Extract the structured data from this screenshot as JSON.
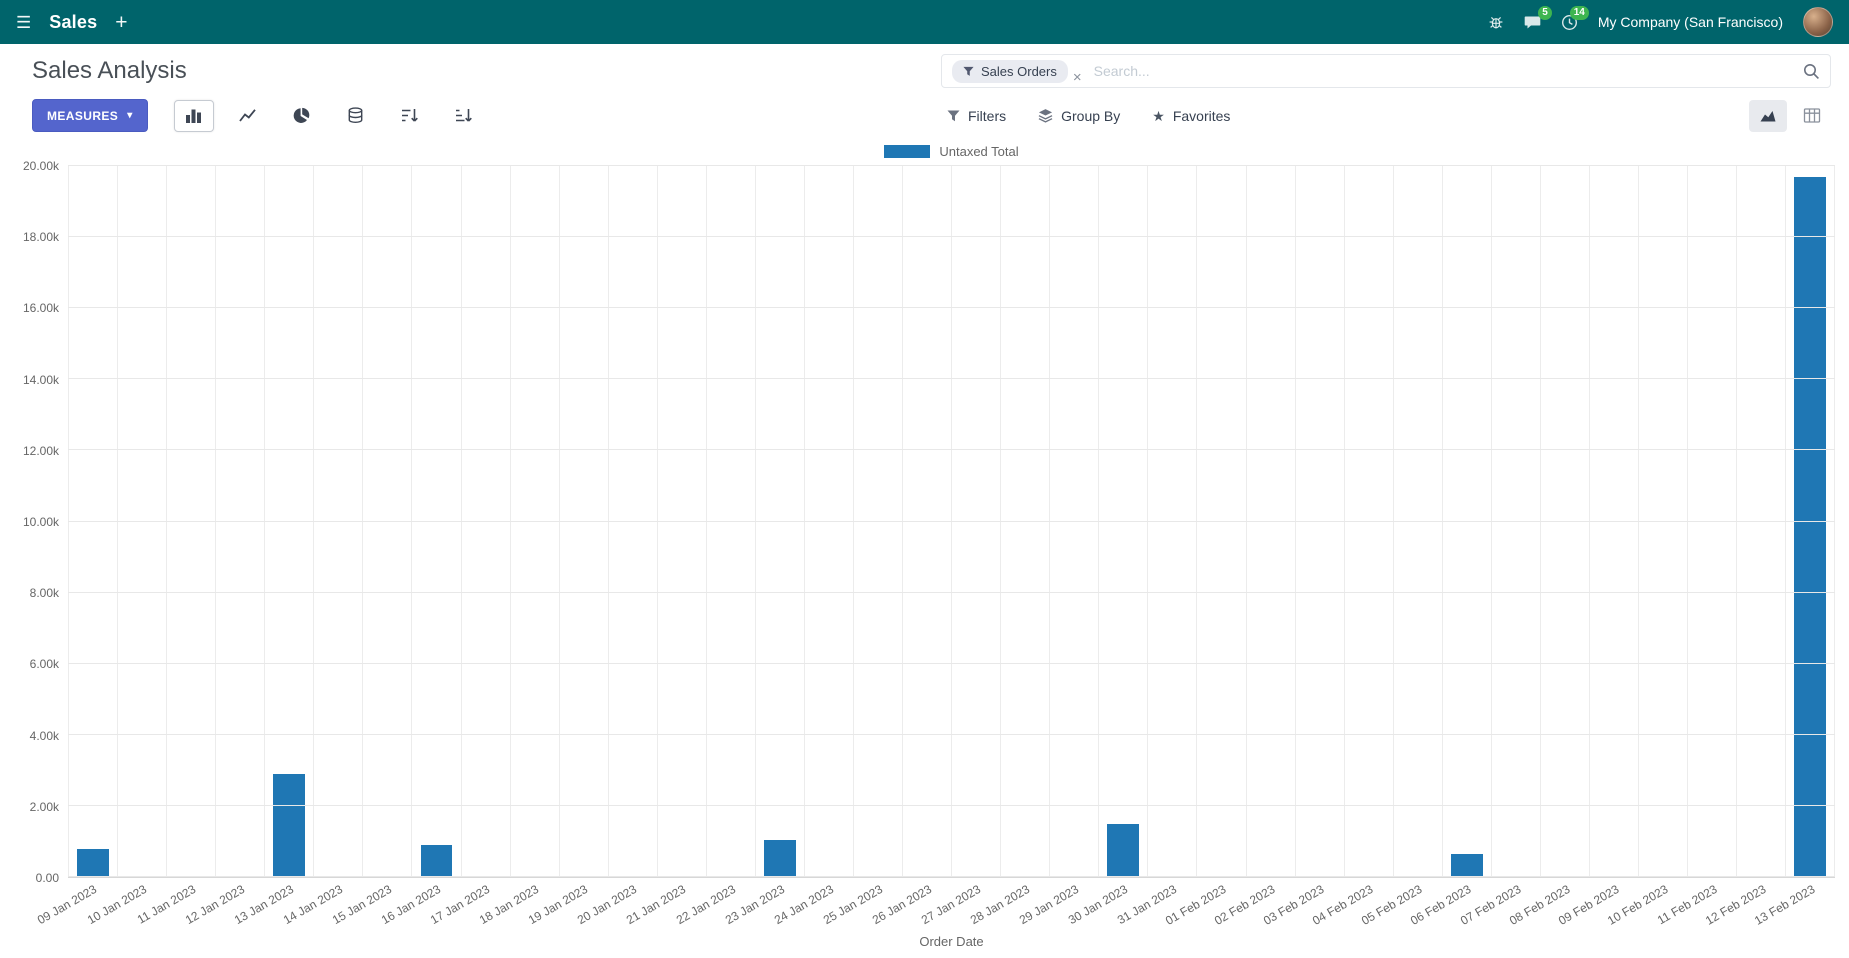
{
  "navbar": {
    "app_name": "Sales",
    "company": "My Company (San Francisco)",
    "messages_badge": "5",
    "activities_badge": "14"
  },
  "control_panel": {
    "title": "Sales Analysis",
    "measures_label": "MEASURES",
    "search": {
      "facet": "Sales Orders",
      "placeholder": "Search..."
    },
    "filters_label": "Filters",
    "group_by_label": "Group By",
    "favorites_label": "Favorites"
  },
  "icons": {
    "menu": "☰",
    "plus": "+",
    "caret-down": "▾",
    "star": "★",
    "close": "×"
  },
  "chart_data": {
    "type": "bar",
    "title": "",
    "xlabel": "Order Date",
    "ylabel": "",
    "legend": [
      "Untaxed Total"
    ],
    "legend_position": "top",
    "grid": true,
    "bar_color": "#1f77b4",
    "ylim": [
      0,
      20000
    ],
    "y_ticks": [
      "0.00",
      "2.00k",
      "4.00k",
      "6.00k",
      "8.00k",
      "10.00k",
      "12.00k",
      "14.00k",
      "16.00k",
      "18.00k",
      "20.00k"
    ],
    "categories": [
      "09 Jan 2023",
      "10 Jan 2023",
      "11 Jan 2023",
      "12 Jan 2023",
      "13 Jan 2023",
      "14 Jan 2023",
      "15 Jan 2023",
      "16 Jan 2023",
      "17 Jan 2023",
      "18 Jan 2023",
      "19 Jan 2023",
      "20 Jan 2023",
      "21 Jan 2023",
      "22 Jan 2023",
      "23 Jan 2023",
      "24 Jan 2023",
      "25 Jan 2023",
      "26 Jan 2023",
      "27 Jan 2023",
      "28 Jan 2023",
      "29 Jan 2023",
      "30 Jan 2023",
      "31 Jan 2023",
      "01 Feb 2023",
      "02 Feb 2023",
      "03 Feb 2023",
      "04 Feb 2023",
      "05 Feb 2023",
      "06 Feb 2023",
      "07 Feb 2023",
      "08 Feb 2023",
      "09 Feb 2023",
      "10 Feb 2023",
      "11 Feb 2023",
      "12 Feb 2023",
      "13 Feb 2023"
    ],
    "values": [
      800,
      0,
      0,
      0,
      2900,
      0,
      0,
      900,
      0,
      0,
      0,
      0,
      0,
      0,
      1050,
      0,
      0,
      0,
      0,
      0,
      0,
      1500,
      0,
      0,
      0,
      0,
      0,
      0,
      650,
      0,
      0,
      0,
      0,
      0,
      0,
      19700
    ]
  }
}
